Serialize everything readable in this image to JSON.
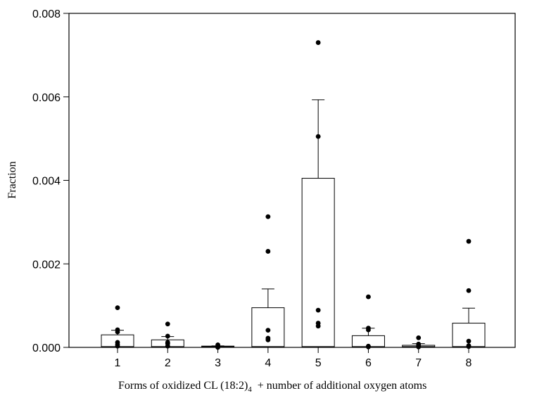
{
  "chart_data": {
    "type": "bar",
    "title": "",
    "xlabel_prefix": "Forms of oxidized CL (18:2)",
    "xlabel_subscript": "4",
    "xlabel_suffix": "  + number of additional oxygen atoms",
    "ylabel": "Fraction",
    "ylim": [
      0,
      0.008
    ],
    "yticks": [
      "0.000",
      "0.002",
      "0.004",
      "0.006",
      "0.008"
    ],
    "ytick_values": [
      0,
      0.002,
      0.004,
      0.006,
      0.008
    ],
    "categories": [
      "1",
      "2",
      "3",
      "4",
      "5",
      "6",
      "7",
      "8"
    ],
    "values": [
      0.0003,
      0.00018,
      3e-05,
      0.00095,
      0.00405,
      0.00028,
      5e-05,
      0.00058
    ],
    "error_upper": [
      0.00041,
      0.00026,
      3.5e-05,
      0.0014,
      0.00593,
      0.00046,
      9e-05,
      0.00094
    ],
    "points": [
      [
        0.00095,
        0.00042,
        0.00037,
        0.00012,
        7e-05,
        3e-05
      ],
      [
        0.00056,
        0.00027,
        0.00012,
        9e-05,
        3e-05
      ],
      [
        6e-05,
        3e-05,
        0.0
      ],
      [
        0.00313,
        0.0023,
        0.00041,
        0.00022,
        0.00018
      ],
      [
        0.0073,
        0.00505,
        0.00089,
        0.00058,
        0.00051
      ],
      [
        0.00121,
        0.00046,
        0.00042,
        3e-05,
        1e-05
      ],
      [
        0.00023,
        8e-05,
        3e-05,
        1e-05
      ],
      [
        0.00254,
        0.00136,
        0.00015,
        4e-05,
        2e-05
      ]
    ],
    "grid": false,
    "legend": "none"
  }
}
